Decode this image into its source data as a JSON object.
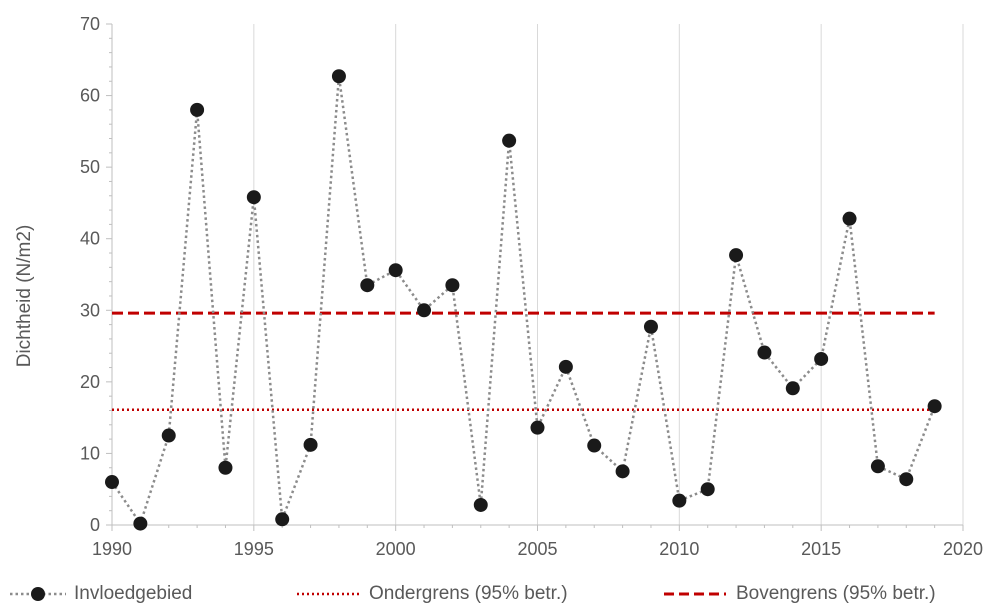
{
  "chart_data": {
    "type": "line",
    "xlabel": "",
    "ylabel": "Dichtheid  (N/m2)",
    "xlim": [
      1990,
      2020
    ],
    "ylim": [
      0,
      70
    ],
    "xticks": [
      1990,
      1995,
      2000,
      2005,
      2010,
      2015,
      2020
    ],
    "yticks": [
      0,
      10,
      20,
      30,
      40,
      50,
      60,
      70
    ],
    "grid": "vertical",
    "legend_position": "bottom",
    "series": [
      {
        "name": "Invloedgebied",
        "style": "dotted-markers",
        "color": "#1a1a1a",
        "line_color": "#8c8c8c",
        "x": [
          1990,
          1991,
          1992,
          1993,
          1994,
          1995,
          1996,
          1997,
          1998,
          1999,
          2000,
          2001,
          2002,
          2003,
          2004,
          2005,
          2006,
          2007,
          2008,
          2009,
          2010,
          2011,
          2012,
          2013,
          2014,
          2015,
          2016,
          2017,
          2018,
          2019
        ],
        "y": [
          6,
          0.2,
          12.5,
          58,
          8,
          45.8,
          0.8,
          11.2,
          62.7,
          33.5,
          35.6,
          30,
          33.5,
          2.8,
          53.7,
          13.6,
          22.1,
          11.1,
          7.5,
          27.7,
          3.4,
          5,
          37.7,
          24.1,
          19.1,
          23.2,
          42.8,
          8.2,
          6.4,
          16.6
        ]
      },
      {
        "name": "Ondergrens (95% betr.)",
        "style": "dotted",
        "color": "#c00000",
        "x": [
          1990,
          2019
        ],
        "y": [
          16.1,
          16.1
        ]
      },
      {
        "name": "Bovengrens (95% betr.)",
        "style": "dashed",
        "color": "#c00000",
        "x": [
          1990,
          2019
        ],
        "y": [
          29.6,
          29.6
        ]
      }
    ]
  }
}
